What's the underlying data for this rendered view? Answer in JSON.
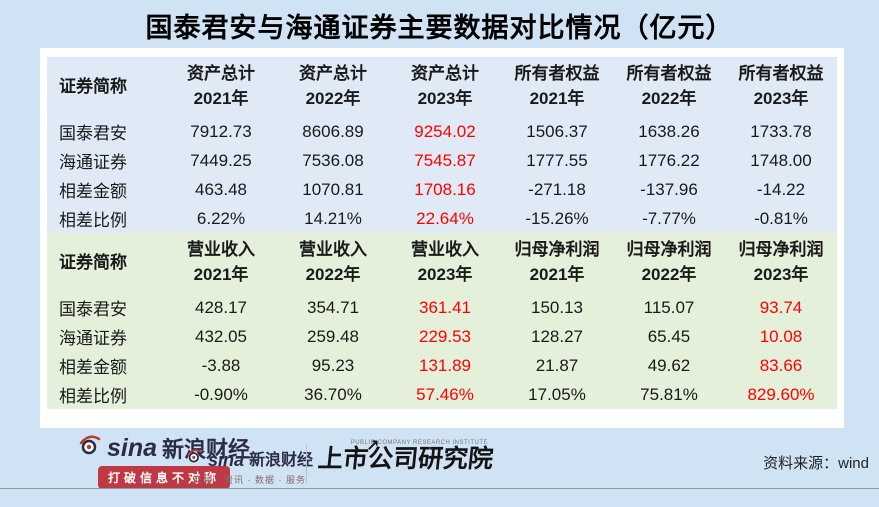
{
  "title": "国泰君安与海通证券主要数据对比情况（亿元）",
  "source_note": "资料来源：wind",
  "colors": {
    "page_bg": "#cfe3f4",
    "card_bg": "#ffffff",
    "section_assets_bg": "#dfeaf6",
    "section_revenue_bg": "#e4f0da",
    "highlight_red": "#ff0000",
    "text": "#1a1a1a",
    "slogan_bg": "#bf3945"
  },
  "chart_data": {
    "type": "table",
    "title": "国泰君安与海通证券主要数据对比情况（亿元）",
    "unit": "亿元",
    "sections": [
      {
        "id": "assets-equity",
        "row_header_label": "证券简称",
        "columns": [
          {
            "metric": "资产总计",
            "year": "2021年"
          },
          {
            "metric": "资产总计",
            "year": "2022年"
          },
          {
            "metric": "资产总计",
            "year": "2023年"
          },
          {
            "metric": "所有者权益",
            "year": "2021年"
          },
          {
            "metric": "所有者权益",
            "year": "2022年"
          },
          {
            "metric": "所有者权益",
            "year": "2023年"
          }
        ],
        "red_columns": [
          2
        ],
        "rows": [
          {
            "label": "国泰君安",
            "values": [
              "7912.73",
              "8606.89",
              "9254.02",
              "1506.37",
              "1638.26",
              "1733.78"
            ]
          },
          {
            "label": "海通证券",
            "values": [
              "7449.25",
              "7536.08",
              "7545.87",
              "1777.55",
              "1776.22",
              "1748.00"
            ]
          },
          {
            "label": "相差金额",
            "values": [
              "463.48",
              "1070.81",
              "1708.16",
              "-271.18",
              "-137.96",
              "-14.22"
            ]
          },
          {
            "label": "相差比例",
            "values": [
              "6.22%",
              "14.21%",
              "22.64%",
              "-15.26%",
              "-7.77%",
              "-0.81%"
            ]
          }
        ]
      },
      {
        "id": "revenue-profit",
        "row_header_label": "证券简称",
        "columns": [
          {
            "metric": "营业收入",
            "year": "2021年"
          },
          {
            "metric": "营业收入",
            "year": "2022年"
          },
          {
            "metric": "营业收入",
            "year": "2023年"
          },
          {
            "metric": "归母净利润",
            "year": "2021年"
          },
          {
            "metric": "归母净利润",
            "year": "2022年"
          },
          {
            "metric": "归母净利润",
            "year": "2023年"
          }
        ],
        "red_columns": [
          2,
          5
        ],
        "rows": [
          {
            "label": "国泰君安",
            "values": [
              "428.17",
              "354.71",
              "361.41",
              "150.13",
              "115.07",
              "93.74"
            ]
          },
          {
            "label": "海通证券",
            "values": [
              "432.05",
              "259.48",
              "229.53",
              "128.27",
              "65.45",
              "10.08"
            ]
          },
          {
            "label": "相差金额",
            "values": [
              "-3.88",
              "95.23",
              "131.89",
              "21.87",
              "49.62",
              "83.66"
            ]
          },
          {
            "label": "相差比例",
            "values": [
              "-0.90%",
              "36.70%",
              "57.46%",
              "17.05%",
              "75.81%",
              "829.60%"
            ]
          }
        ]
      }
    ]
  },
  "footer": {
    "sina_primary": {
      "brand": "sina",
      "brand_cn": "新浪财经",
      "slogan": "打破信息不对称"
    },
    "sina_secondary": {
      "brand": "sina",
      "brand_cn": "新浪财经",
      "tagline": "交易 · 资讯 · 数据 · 服务"
    },
    "institute": {
      "name_en": "PUBLIC COMPANY RESEARCH INSTITUTE",
      "name_cn": "上市公司研究院",
      "arrow": "↗"
    }
  }
}
